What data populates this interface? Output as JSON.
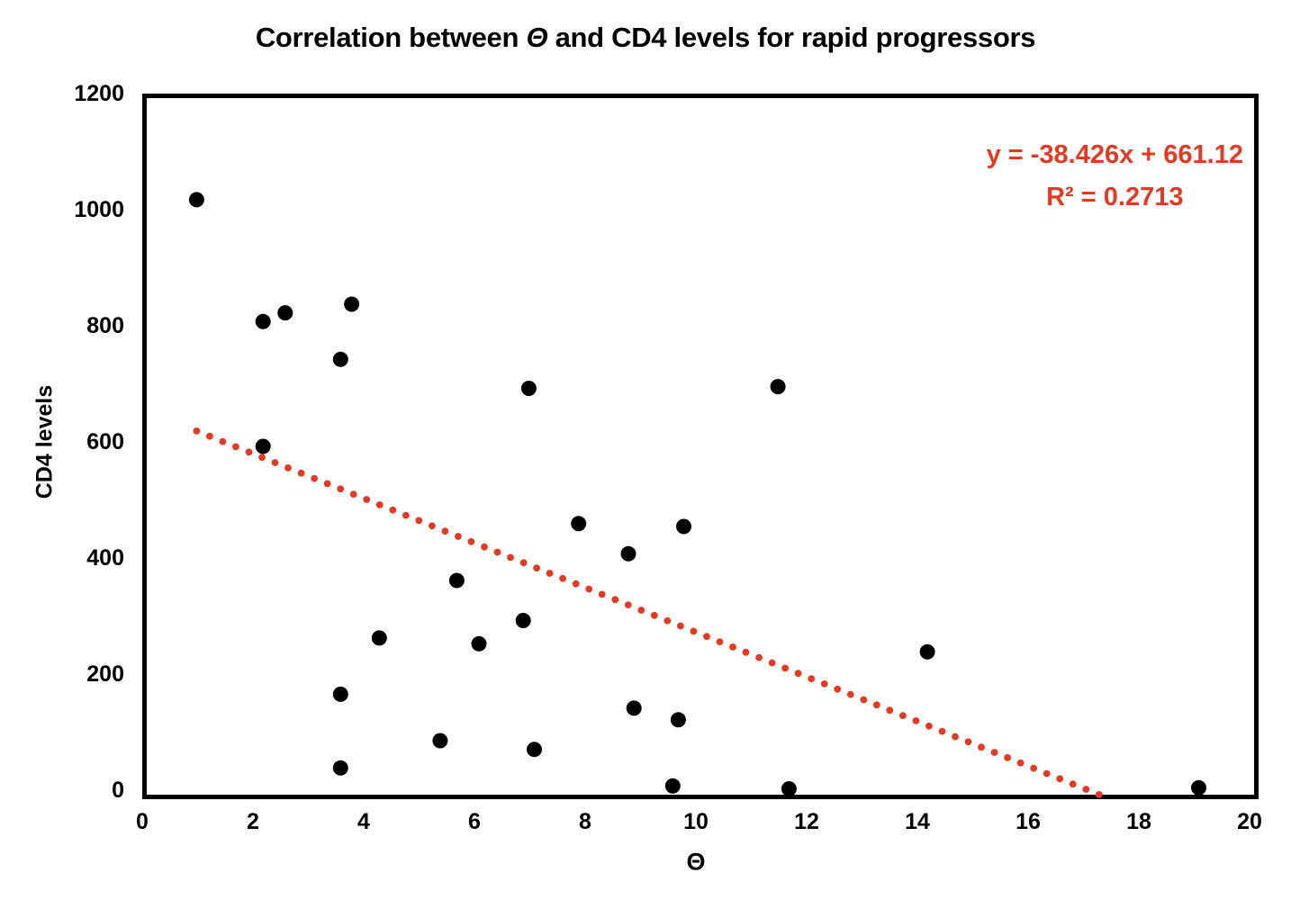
{
  "title": {
    "prefix": "Correlation between ",
    "theta": "Θ",
    "suffix": " and CD4 levels for rapid progressors"
  },
  "axes": {
    "x": {
      "label": "Θ",
      "min": 0,
      "max": 20,
      "ticks": [
        0,
        2,
        4,
        6,
        8,
        10,
        12,
        14,
        16,
        18,
        20
      ]
    },
    "y": {
      "label": "CD4 levels",
      "min": 0,
      "max": 1200,
      "ticks": [
        0,
        200,
        400,
        600,
        800,
        1000,
        1200
      ]
    }
  },
  "annotation": {
    "line1": "y = -38.426x + 661.12",
    "line2": "R² = 0.2713",
    "color": "#E33A23"
  },
  "chart_data": {
    "type": "scatter",
    "title": "Correlation between Θ and CD4 levels for rapid progressors",
    "xlabel": "Θ",
    "ylabel": "CD4 levels",
    "xlim": [
      0,
      20
    ],
    "ylim": [
      0,
      1200
    ],
    "grid": false,
    "legend": "none",
    "point_color": "#000000",
    "points": [
      [
        0.9,
        1025
      ],
      [
        2.1,
        815
      ],
      [
        2.5,
        830
      ],
      [
        3.7,
        845
      ],
      [
        3.5,
        750
      ],
      [
        2.1,
        600
      ],
      [
        6.9,
        700
      ],
      [
        11.4,
        703
      ],
      [
        7.8,
        467
      ],
      [
        9.7,
        462
      ],
      [
        8.7,
        415
      ],
      [
        5.6,
        369
      ],
      [
        6.8,
        300
      ],
      [
        4.2,
        270
      ],
      [
        6.0,
        260
      ],
      [
        14.1,
        246
      ],
      [
        3.5,
        173
      ],
      [
        8.8,
        149
      ],
      [
        9.6,
        129
      ],
      [
        5.3,
        93
      ],
      [
        7.0,
        78
      ],
      [
        3.5,
        46
      ],
      [
        9.5,
        15
      ],
      [
        11.6,
        10
      ],
      [
        19.0,
        12
      ]
    ],
    "trendline": {
      "type": "linear",
      "slope": -38.426,
      "intercept": 661.12,
      "r_squared": 0.2713,
      "equation_label": "y = -38.426x + 661.12",
      "r_squared_label": "R² = 0.2713",
      "style": "dotted",
      "color": "#E33A23",
      "x_start": 0.9,
      "x_end": 17.2
    }
  }
}
